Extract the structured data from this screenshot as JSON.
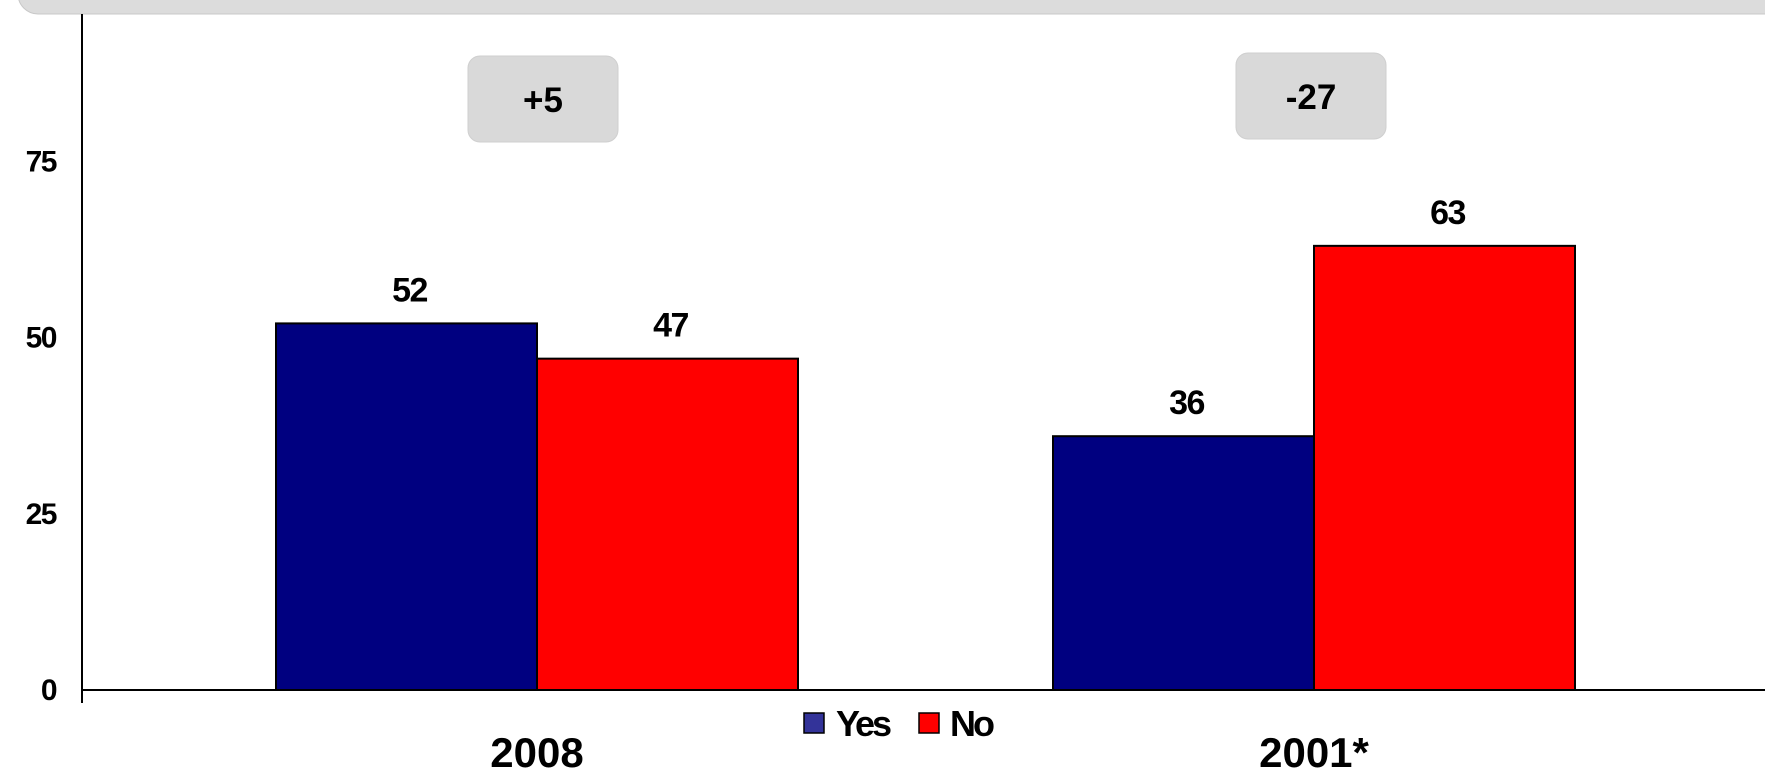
{
  "chart_data": {
    "type": "bar",
    "categories": [
      "2008",
      "2001*"
    ],
    "series": [
      {
        "name": "Yes",
        "color": "#000080",
        "values": [
          52,
          36
        ]
      },
      {
        "name": "No",
        "color": "#FF0000",
        "values": [
          47,
          63
        ]
      }
    ],
    "annotations": [
      "+5",
      "-27"
    ],
    "title": "",
    "xlabel": "",
    "ylabel": "",
    "ylim": [
      0,
      100
    ],
    "y_ticks": [
      "0",
      "25",
      "50",
      "75"
    ],
    "grid": false,
    "legend_position": "bottom-center",
    "annotation_box_color": "#d9d9d9"
  }
}
